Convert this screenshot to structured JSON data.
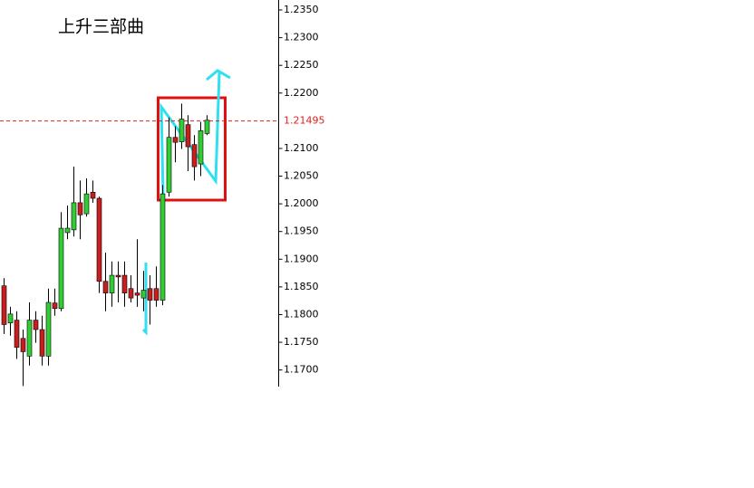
{
  "chart_data": {
    "type": "candlestick",
    "title": "上升三部曲",
    "series": [
      {
        "up_color": "#32cd32",
        "down_color": "#c81e1e",
        "open": [
          1.1852,
          1.1785,
          1.179,
          1.1757,
          1.1725,
          1.179,
          1.1773,
          1.1725,
          1.1821,
          1.1811,
          1.1948,
          1.1953,
          1.2002,
          1.1982,
          1.2021,
          1.201,
          1.186,
          1.1839,
          1.1871,
          1.1871,
          1.1847,
          1.1839,
          1.183,
          1.1847,
          1.1847,
          1.1826,
          1.2021,
          1.212,
          1.2112,
          1.2143,
          1.2107,
          1.2072,
          1.2127
        ],
        "high": [
          1.1866,
          1.1814,
          1.1806,
          1.1773,
          1.1822,
          1.1806,
          1.1798,
          1.1847,
          1.1847,
          1.1985,
          1.1997,
          1.2067,
          1.2042,
          1.2046,
          1.2042,
          1.2013,
          1.1912,
          1.1896,
          1.1896,
          1.1896,
          1.1871,
          1.1936,
          1.1879,
          1.1871,
          1.1887,
          1.2034,
          1.2156,
          1.214,
          1.2181,
          1.216,
          1.2124,
          1.2148,
          1.216
        ],
        "low": [
          1.1765,
          1.1762,
          1.172,
          1.1671,
          1.1708,
          1.1749,
          1.1708,
          1.1708,
          1.1798,
          1.1806,
          1.1936,
          1.1941,
          1.1936,
          1.1977,
          1.2002,
          1.1839,
          1.1806,
          1.1814,
          1.1822,
          1.1814,
          1.1822,
          1.1814,
          1.1806,
          1.1782,
          1.1814,
          1.1817,
          1.2013,
          1.2075,
          1.2099,
          1.2059,
          1.2042,
          1.205,
          1.2124
        ],
        "close": [
          1.1782,
          1.1801,
          1.1741,
          1.1733,
          1.179,
          1.1773,
          1.1725,
          1.1822,
          1.1811,
          1.1956,
          1.1956,
          1.2002,
          1.198,
          1.2018,
          1.201,
          1.186,
          1.1839,
          1.1871,
          1.1868,
          1.1839,
          1.183,
          1.1835,
          1.1844,
          1.1826,
          1.1826,
          1.2018,
          1.212,
          1.2111,
          1.2153,
          1.2103,
          1.2067,
          1.2132,
          1.2151
        ]
      }
    ],
    "ylim": [
      1.167,
      1.2368
    ],
    "yticks": [
      {
        "value": 1.235,
        "label": "1.2350"
      },
      {
        "value": 1.23,
        "label": "1.2300"
      },
      {
        "value": 1.225,
        "label": "1.2250"
      },
      {
        "value": 1.22,
        "label": "1.2200"
      },
      {
        "value": 1.21,
        "label": "1.2100"
      },
      {
        "value": 1.205,
        "label": "1.2050"
      },
      {
        "value": 1.2,
        "label": "1.2000"
      },
      {
        "value": 1.195,
        "label": "1.1950"
      },
      {
        "value": 1.19,
        "label": "1.1900"
      },
      {
        "value": 1.185,
        "label": "1.1850"
      },
      {
        "value": 1.18,
        "label": "1.1800"
      },
      {
        "value": 1.175,
        "label": "1.1750"
      },
      {
        "value": 1.17,
        "label": "1.1700"
      }
    ],
    "price_line": {
      "value": 1.21495,
      "color": "#e02020"
    }
  }
}
